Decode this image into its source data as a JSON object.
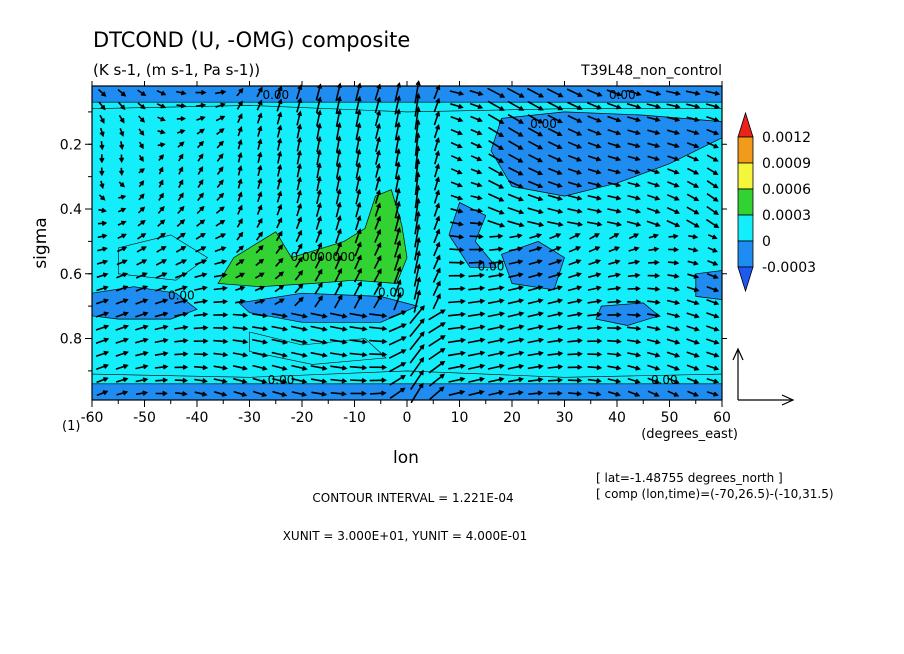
{
  "chart_data": {
    "type": "heatmap",
    "title": "DTCOND (U, -OMG) composite",
    "units_line": "(K s-1, (m s-1, Pa s-1))",
    "run_name": "T39L48_non_control",
    "xlabel": "lon",
    "x_unit_label": "(degrees_east)",
    "ylabel": "sigma",
    "y_corner_label": "(1)",
    "xlim": [
      -60,
      60
    ],
    "ylim": [
      0.02,
      0.99
    ],
    "y_inverted": true,
    "x_ticks": [
      "-60",
      "-50",
      "-40",
      "-30",
      "-20",
      "-10",
      "0",
      "10",
      "20",
      "30",
      "40",
      "50",
      "60"
    ],
    "x_tick_values": [
      -60,
      -50,
      -40,
      -30,
      -20,
      -10,
      0,
      10,
      20,
      30,
      40,
      50,
      60
    ],
    "y_ticks": [
      "0.2",
      "0.4",
      "0.6",
      "0.8"
    ],
    "y_tick_values": [
      0.2,
      0.4,
      0.6,
      0.8
    ],
    "colorbar": {
      "labels": [
        "0.0012",
        "0.0009",
        "0.0006",
        "0.0003",
        "0",
        "-0.0003"
      ],
      "colors": [
        "#e8231c",
        "#f29a19",
        "#f5f53c",
        "#32d232",
        "#14eefa",
        "#1e8cf0",
        "#1e5af0"
      ]
    },
    "regions": [
      {
        "level": "neg",
        "color": "#1e8cf0",
        "points": [
          [
            -60,
            0.02
          ],
          [
            60,
            0.02
          ],
          [
            60,
            0.07
          ],
          [
            -60,
            0.07
          ]
        ]
      },
      {
        "level": "neg",
        "color": "#1e8cf0",
        "points": [
          [
            -60,
            0.94
          ],
          [
            60,
            0.94
          ],
          [
            60,
            0.99
          ],
          [
            -60,
            0.99
          ]
        ]
      },
      {
        "level": "neg",
        "color": "#1e8cf0",
        "points": [
          [
            -60,
            0.66
          ],
          [
            -52,
            0.64
          ],
          [
            -44,
            0.66
          ],
          [
            -40,
            0.71
          ],
          [
            -45,
            0.74
          ],
          [
            -55,
            0.74
          ],
          [
            -60,
            0.73
          ]
        ]
      },
      {
        "level": "neg",
        "color": "#1e8cf0",
        "points": [
          [
            -32,
            0.69
          ],
          [
            -20,
            0.66
          ],
          [
            -5,
            0.67
          ],
          [
            2,
            0.7
          ],
          [
            -5,
            0.75
          ],
          [
            -20,
            0.75
          ],
          [
            -30,
            0.72
          ]
        ]
      },
      {
        "level": "neg",
        "color": "#1e8cf0",
        "points": [
          [
            18,
            0.12
          ],
          [
            30,
            0.1
          ],
          [
            45,
            0.11
          ],
          [
            60,
            0.13
          ],
          [
            60,
            0.18
          ],
          [
            50,
            0.26
          ],
          [
            40,
            0.32
          ],
          [
            30,
            0.36
          ],
          [
            20,
            0.33
          ],
          [
            16,
            0.22
          ]
        ]
      },
      {
        "level": "neg",
        "color": "#1e8cf0",
        "points": [
          [
            10,
            0.38
          ],
          [
            15,
            0.42
          ],
          [
            13,
            0.5
          ],
          [
            17,
            0.58
          ],
          [
            12,
            0.58
          ],
          [
            8,
            0.48
          ]
        ]
      },
      {
        "level": "neg",
        "color": "#1e8cf0",
        "points": [
          [
            18,
            0.54
          ],
          [
            25,
            0.5
          ],
          [
            30,
            0.55
          ],
          [
            28,
            0.65
          ],
          [
            20,
            0.63
          ]
        ]
      },
      {
        "level": "neg",
        "color": "#1e8cf0",
        "points": [
          [
            55,
            0.6
          ],
          [
            60,
            0.59
          ],
          [
            60,
            0.68
          ],
          [
            55,
            0.67
          ]
        ]
      },
      {
        "level": "neg",
        "color": "#1e8cf0",
        "points": [
          [
            37,
            0.7
          ],
          [
            45,
            0.69
          ],
          [
            48,
            0.73
          ],
          [
            42,
            0.76
          ],
          [
            36,
            0.74
          ]
        ]
      },
      {
        "level": "pos",
        "color": "#32d232",
        "points": [
          [
            -36,
            0.63
          ],
          [
            -33,
            0.55
          ],
          [
            -28,
            0.5
          ],
          [
            -25,
            0.47
          ],
          [
            -22,
            0.55
          ],
          [
            -16,
            0.52
          ],
          [
            -12,
            0.5
          ],
          [
            -8,
            0.46
          ],
          [
            -6,
            0.36
          ],
          [
            -3,
            0.34
          ],
          [
            -1,
            0.45
          ],
          [
            0,
            0.55
          ],
          [
            -2,
            0.63
          ],
          [
            -10,
            0.62
          ],
          [
            -18,
            0.63
          ],
          [
            -28,
            0.64
          ]
        ]
      }
    ],
    "contour_labels": [
      {
        "text": "0.00",
        "x": -25,
        "y": 0.06
      },
      {
        "text": "0.00",
        "x": 41,
        "y": 0.06
      },
      {
        "text": "0.00",
        "x": 26,
        "y": 0.15
      },
      {
        "text": "0.00",
        "x": -43,
        "y": 0.68
      },
      {
        "text": "0.00",
        "x": -24,
        "y": 0.94
      },
      {
        "text": "0.00",
        "x": 49,
        "y": 0.94
      },
      {
        "text": "0.00",
        "x": -3,
        "y": 0.67
      },
      {
        "text": "0.00",
        "x": 16,
        "y": 0.59
      },
      {
        "text": "0.0000000",
        "x": -16,
        "y": 0.56
      }
    ],
    "contour_interval": "CONTOUR INTERVAL = 1.221E-04",
    "vector_units": "XUNIT = 3.000E+01, YUNIT = 4.000E-01",
    "lat_note": "[ lat=-1.48755 degrees_north ]",
    "comp_note": "[ comp (lon,time)=(-70,26.5)-(-10,31.5)"
  }
}
